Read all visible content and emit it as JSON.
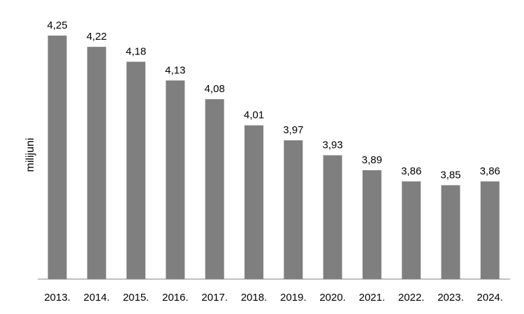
{
  "chart_data": {
    "type": "bar",
    "title": "",
    "xlabel": "",
    "ylabel": "milijuni",
    "categories": [
      "2013.",
      "2014.",
      "2015.",
      "2016.",
      "2017.",
      "2018.",
      "2019.",
      "2020.",
      "2021.",
      "2022.",
      "2023.",
      "2024."
    ],
    "values": [
      4.25,
      4.22,
      4.18,
      4.13,
      4.08,
      4.01,
      3.97,
      3.93,
      3.89,
      3.86,
      3.85,
      3.86
    ],
    "data_labels": [
      "4,25",
      "4,22",
      "4,18",
      "4,13",
      "4,08",
      "4,01",
      "3,97",
      "3,93",
      "3,89",
      "3,86",
      "3,85",
      "3,86"
    ],
    "ylim": [
      3.5,
      4.3
    ],
    "grid": false,
    "legend": "none",
    "colors": {
      "bar": "#7f7f7f",
      "label": "#000000",
      "highlight_label": "#c0504d"
    },
    "highlight_index": 11
  }
}
